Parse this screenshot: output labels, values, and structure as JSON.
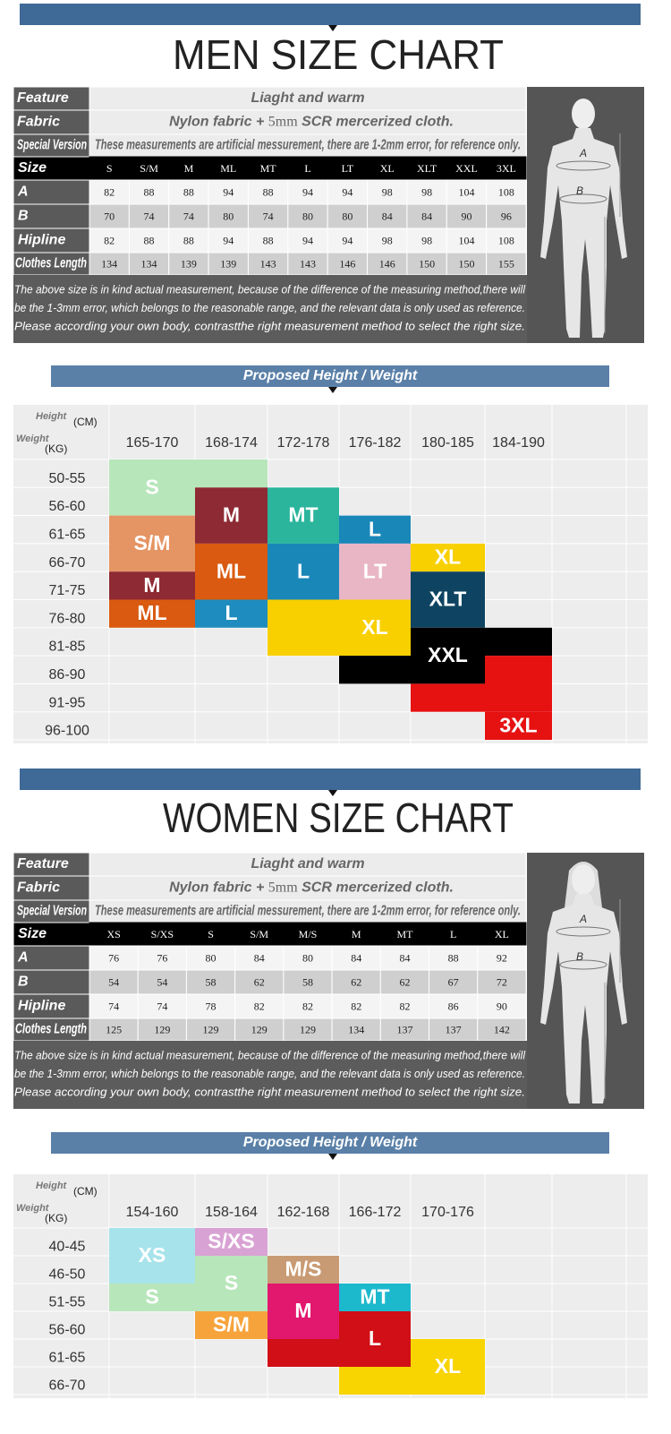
{
  "men": {
    "title": "MEN SIZE CHART",
    "table": {
      "info": [
        {
          "label": "Feature",
          "text": "Liaght and warm"
        },
        {
          "label": "Fabric",
          "text": [
            "Nylon fabric +",
            "5mm",
            "SCR mercerized cloth."
          ]
        },
        {
          "label": "Special Version",
          "text": "These measurements are artificial messurement, there are 1-2mm error, for reference only."
        }
      ],
      "rows": [
        [
          "Size",
          "S",
          "S/M",
          "M",
          "ML",
          "MT",
          "L",
          "LT",
          "XL",
          "XLT",
          "XXL",
          "3XL"
        ],
        [
          "A",
          82,
          88,
          88,
          94,
          88,
          94,
          94,
          98,
          98,
          104,
          108
        ],
        [
          "B",
          70,
          74,
          74,
          80,
          74,
          80,
          80,
          84,
          84,
          90,
          96
        ],
        [
          "Hipline",
          82,
          88,
          88,
          94,
          88,
          94,
          94,
          98,
          98,
          104,
          108
        ],
        [
          "Clothes Length",
          134,
          134,
          139,
          139,
          143,
          143,
          146,
          146,
          150,
          150,
          155
        ]
      ],
      "note": [
        "The above size is in kind actual measurement, because of the difference of the measuring method,there will",
        "be the 1-3mm error, which belongs to the reasonable range, and the relevant data is only used as reference.",
        "Please according your own body, contrastthe right measurement method to select the right size."
      ]
    },
    "figure": {
      "a": "A",
      "b": "B"
    },
    "proposed": {
      "title": "Proposed Height / Weight",
      "height_label": "Height",
      "height_unit": "(CM)",
      "weight_label": "Weight",
      "weight_unit": "(KG)",
      "heights": [
        "165-170",
        "168-174",
        "172-178",
        "176-182",
        "180-185",
        "184-190"
      ],
      "weights": [
        "50-55",
        "56-60",
        "61-65",
        "66-70",
        "71-75",
        "76-80",
        "81-85",
        "86-90",
        "91-95",
        "96-100"
      ],
      "blocks": [
        {
          "label": "S",
          "col": 0,
          "row": 0,
          "span": 2,
          "color": "#b8e6bb"
        },
        {
          "col": 1,
          "row": 0,
          "span": 1,
          "color": "#b8e6bb"
        },
        {
          "label": "S/M",
          "col": 0,
          "row": 2,
          "span": 2,
          "color": "#e59464"
        },
        {
          "label": "M",
          "col": 0,
          "row": 4,
          "span": 1,
          "color": "#8e2a33"
        },
        {
          "label": "ML",
          "col": 0,
          "row": 5,
          "span": 1,
          "color": "#d95a10"
        },
        {
          "label": "M",
          "col": 1,
          "row": 1,
          "span": 2,
          "color": "#8e2a33"
        },
        {
          "label": "ML",
          "col": 1,
          "row": 3,
          "span": 2,
          "color": "#d95a10"
        },
        {
          "label": "L",
          "col": 1,
          "row": 5,
          "span": 1,
          "color": "#1e8cbe"
        },
        {
          "label": "MT",
          "col": 2,
          "row": 1,
          "span": 2,
          "color": "#2ab59c"
        },
        {
          "label": "L",
          "col": 2,
          "row": 3,
          "span": 2,
          "color": "#1a87b9"
        },
        {
          "col": 2,
          "row": 5,
          "span": 2,
          "color": "#f8d000"
        },
        {
          "label": "L",
          "col": 3,
          "row": 2,
          "span": 1,
          "color": "#1a87b9"
        },
        {
          "label": "LT",
          "col": 3,
          "row": 3,
          "span": 2,
          "color": "#e9b6c6"
        },
        {
          "label": "XL",
          "col": 3,
          "row": 5,
          "span": 2,
          "color": "#f8d000"
        },
        {
          "col": 3,
          "row": 7,
          "span": 1,
          "color": "#000000"
        },
        {
          "label": "XL",
          "col": 4,
          "row": 3,
          "span": 1,
          "color": "#f8d000"
        },
        {
          "label": "XLT",
          "col": 4,
          "row": 4,
          "span": 2,
          "color": "#0e4461"
        },
        {
          "label": "XXL",
          "col": 4,
          "row": 6,
          "span": 2,
          "color": "#000000"
        },
        {
          "col": 4,
          "row": 8,
          "span": 1,
          "color": "#e61111"
        },
        {
          "col": 5,
          "row": 6,
          "span": 1,
          "color": "#000000"
        },
        {
          "col": 5,
          "row": 7,
          "span": 2,
          "color": "#e61111"
        },
        {
          "label": "3XL",
          "col": 5,
          "row": 9,
          "span": 1,
          "color": "#e61111"
        }
      ]
    }
  },
  "women": {
    "title": "WOMEN SIZE CHART",
    "table": {
      "info": [
        {
          "label": "Feature",
          "text": "Liaght and warm"
        },
        {
          "label": "Fabric",
          "text": [
            "Nylon fabric +",
            "5mm",
            "SCR mercerized cloth."
          ]
        },
        {
          "label": "Special Version",
          "text": "These measurements are artificial messurement, there are 1-2mm error, for reference only."
        }
      ],
      "rows": [
        [
          "Size",
          "XS",
          "S/XS",
          "S",
          "S/M",
          "M/S",
          "M",
          "MT",
          "L",
          "XL"
        ],
        [
          "A",
          76,
          76,
          80,
          84,
          80,
          84,
          84,
          88,
          92
        ],
        [
          "B",
          54,
          54,
          58,
          62,
          58,
          62,
          62,
          67,
          72
        ],
        [
          "Hipline",
          74,
          74,
          78,
          82,
          82,
          82,
          82,
          86,
          90
        ],
        [
          "Clothes Length",
          125,
          129,
          129,
          129,
          129,
          134,
          137,
          137,
          142
        ]
      ],
      "note": [
        "The above size is in kind actual measurement, because of the difference of the measuring method,there will",
        "be the 1-3mm error, which belongs to the reasonable range, and the relevant data is only used as reference.",
        "Please according your own body, contrastthe right measurement method to select the right size."
      ]
    },
    "figure": {
      "a": "A",
      "b": "B"
    },
    "proposed": {
      "title": "Proposed Height / Weight",
      "height_label": "Height",
      "height_unit": "(CM)",
      "weight_label": "Weight",
      "weight_unit": "(KG)",
      "heights": [
        "154-160",
        "158-164",
        "162-168",
        "166-172",
        "170-176"
      ],
      "weights": [
        "40-45",
        "46-50",
        "51-55",
        "56-60",
        "61-65",
        "66-70"
      ],
      "blocks": [
        {
          "label": "XS",
          "col": 0,
          "row": 0,
          "span": 2,
          "color": "#a7e3ea"
        },
        {
          "label": "S",
          "col": 0,
          "row": 2,
          "span": 1,
          "color": "#b8e6bb"
        },
        {
          "label": "S/XS",
          "col": 1,
          "row": 0,
          "span": 1,
          "color": "#d9a2d4"
        },
        {
          "label": "S",
          "col": 1,
          "row": 1,
          "span": 2,
          "color": "#b8e6bb"
        },
        {
          "label": "S/M",
          "col": 1,
          "row": 3,
          "span": 1,
          "color": "#f6a33c"
        },
        {
          "label": "M/S",
          "col": 2,
          "row": 1,
          "span": 1,
          "color": "#c99b74"
        },
        {
          "label": "M",
          "col": 2,
          "row": 2,
          "span": 2,
          "color": "#e2186f"
        },
        {
          "col": 2,
          "row": 4,
          "span": 1,
          "color": "#d10f16"
        },
        {
          "label": "MT",
          "col": 3,
          "row": 2,
          "span": 1,
          "color": "#1cb9cd"
        },
        {
          "label": "L",
          "col": 3,
          "row": 3,
          "span": 2,
          "color": "#d10f16"
        },
        {
          "col": 3,
          "row": 5,
          "span": 1,
          "color": "#f8d400"
        },
        {
          "label": "XL",
          "col": 4,
          "row": 4,
          "span": 2,
          "color": "#f8d400"
        }
      ]
    }
  }
}
